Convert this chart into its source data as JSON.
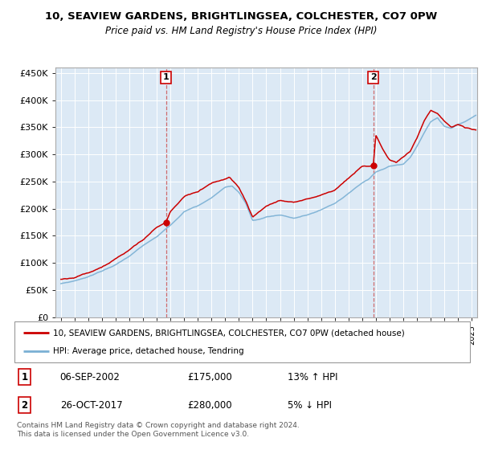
{
  "title": "10, SEAVIEW GARDENS, BRIGHTLINGSEA, COLCHESTER, CO7 0PW",
  "subtitle": "Price paid vs. HM Land Registry's House Price Index (HPI)",
  "ylabel_ticks": [
    "£0",
    "£50K",
    "£100K",
    "£150K",
    "£200K",
    "£250K",
    "£300K",
    "£350K",
    "£400K",
    "£450K"
  ],
  "ytick_vals": [
    0,
    50000,
    100000,
    150000,
    200000,
    250000,
    300000,
    350000,
    400000,
    450000
  ],
  "ylim": [
    0,
    460000
  ],
  "xlim_start": 1994.6,
  "xlim_end": 2025.4,
  "plot_bg_color": "#dce9f5",
  "grid_color": "#ffffff",
  "legend_label_red": "10, SEAVIEW GARDENS, BRIGHTLINGSEA, COLCHESTER, CO7 0PW (detached house)",
  "legend_label_blue": "HPI: Average price, detached house, Tendring",
  "annotation1_date": "06-SEP-2002",
  "annotation1_price": "£175,000",
  "annotation1_hpi": "13% ↑ HPI",
  "annotation2_date": "26-OCT-2017",
  "annotation2_price": "£280,000",
  "annotation2_hpi": "5% ↓ HPI",
  "footnote": "Contains HM Land Registry data © Crown copyright and database right 2024.\nThis data is licensed under the Open Government Licence v3.0.",
  "sale1_x": 2002.68,
  "sale1_y": 175000,
  "sale2_x": 2017.81,
  "sale2_y": 280000,
  "red_color": "#cc0000",
  "blue_color": "#7ab0d4",
  "vline_color": "#cc5555"
}
